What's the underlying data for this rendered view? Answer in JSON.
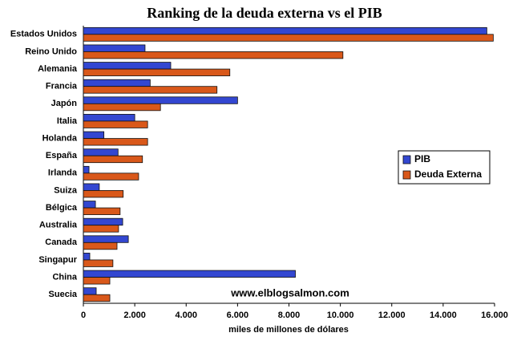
{
  "chart_data": {
    "type": "barh",
    "title": "Ranking de la deuda externa vs el PIB",
    "x_label": "miles de millones de dólares",
    "watermark": "www.elblogsalmon.com",
    "categories": [
      "Estados Unidos",
      "Reino Unido",
      "Alemania",
      "Francia",
      "Japón",
      "Italia",
      "Holanda",
      "España",
      "Irlanda",
      "Suiza",
      "Bélgica",
      "Australia",
      "Canada",
      "Singapur",
      "China",
      "Suecia"
    ],
    "series": [
      {
        "name": "PIB",
        "color": "#3347d1",
        "values": [
          15700,
          2400,
          3400,
          2600,
          6000,
          2000,
          800,
          1350,
          220,
          620,
          470,
          1530,
          1750,
          250,
          8250,
          500
        ]
      },
      {
        "name": "Deuda Externa",
        "color": "#d9581a",
        "values": [
          15950,
          10100,
          5700,
          5200,
          3000,
          2500,
          2500,
          2300,
          2150,
          1550,
          1430,
          1370,
          1310,
          1150,
          1030,
          1030
        ]
      }
    ],
    "xlim": [
      0,
      16000
    ],
    "xticks": [
      0,
      {
        "value": 2000,
        "label": "2.000"
      },
      {
        "value": 4000,
        "label": "4.000"
      },
      {
        "value": 6000,
        "label": "6.000"
      },
      {
        "value": 8000,
        "label": "8.000"
      },
      {
        "value": 10000,
        "label": "10.000"
      },
      {
        "value": 12000,
        "label": "12.000"
      },
      {
        "value": 14000,
        "label": "14.000"
      },
      {
        "value": 16000,
        "label": "16.000"
      }
    ],
    "legend": "right",
    "grid": false
  }
}
